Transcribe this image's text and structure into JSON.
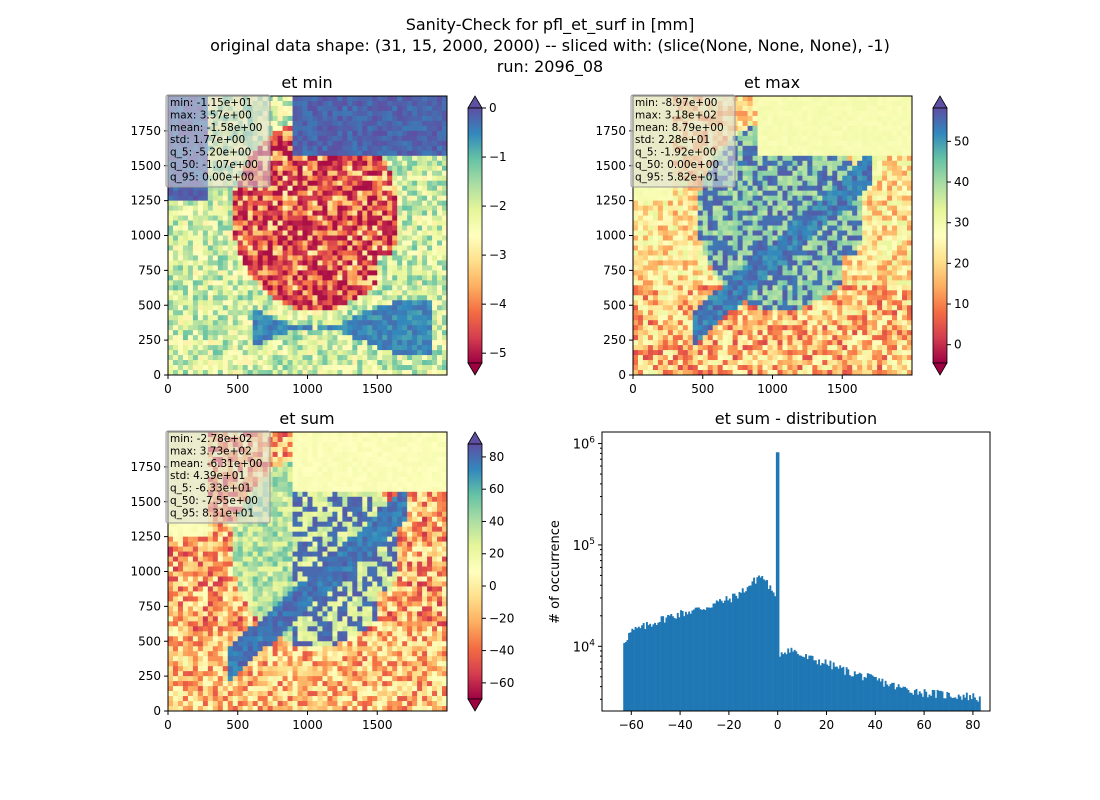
{
  "suptitle_lines": [
    "Sanity-Check for pfl_et_surf in [mm]",
    "original data shape: (31, 15, 2000, 2000) -- sliced with: (slice(None, None, None), -1)",
    "run: 2096_08"
  ],
  "colormap": "Spectral",
  "panels": [
    {
      "title": "et min",
      "x_ticks": [
        "0",
        "500",
        "1000",
        "1500"
      ],
      "y_ticks": [
        "0",
        "250",
        "500",
        "750",
        "1000",
        "1250",
        "1500",
        "1750"
      ],
      "cbar_ticks": [
        "0",
        "−1",
        "−2",
        "−3",
        "−4",
        "−5"
      ],
      "cbar_range": [
        -5.2,
        0.0
      ],
      "stats": [
        "min: -1.15e+01",
        "max: 3.57e+00",
        "mean: -1.58e+00",
        "std: 1.77e+00",
        "q_5: -5.20e+00",
        "q_50: -1.07e+00",
        "q_95: 0.00e+00"
      ]
    },
    {
      "title": "et max",
      "x_ticks": [
        "0",
        "500",
        "1000",
        "1500"
      ],
      "y_ticks": [
        "0",
        "250",
        "500",
        "750",
        "1000",
        "1250",
        "1500",
        "1750"
      ],
      "cbar_ticks": [
        "50",
        "40",
        "30",
        "20",
        "10",
        "0"
      ],
      "cbar_range": [
        -4.5,
        58.2
      ],
      "stats": [
        "min: -8.97e+00",
        "max: 3.18e+02",
        "mean: 8.79e+00",
        "std: 2.28e+01",
        "q_5: -1.92e+00",
        "q_50: 0.00e+00",
        "q_95: 5.82e+01"
      ]
    },
    {
      "title": "et sum",
      "x_ticks": [
        "0",
        "500",
        "1000",
        "1500"
      ],
      "y_ticks": [
        "0",
        "250",
        "500",
        "750",
        "1000",
        "1250",
        "1500",
        "1750"
      ],
      "cbar_ticks": [
        "80",
        "60",
        "40",
        "20",
        "0",
        "−20",
        "−40",
        "−60"
      ],
      "cbar_range": [
        -70,
        88
      ],
      "stats": [
        "min: -2.78e+02",
        "max: 3.73e+02",
        "mean: -6.31e+00",
        "std: 4.39e+01",
        "q_5: -6.33e+01",
        "q_50: -7.55e+00",
        "q_95: 8.31e+01"
      ]
    }
  ],
  "chart_data": {
    "type": "bar",
    "title": "et sum - distribution",
    "xlabel": "",
    "ylabel": "# of occurrence",
    "y_scale": "log",
    "xlim": [
      -72,
      87
    ],
    "ylim": [
      2300,
      1300000
    ],
    "x_tick_labels": [
      "−60",
      "−40",
      "−20",
      "0",
      "20",
      "40",
      "60",
      "80"
    ],
    "y_tick_labels": [
      "10^4",
      "10^5",
      "10^6"
    ],
    "bar_color": "#1f77b4",
    "bins": [
      {
        "x": -63.3,
        "count": 11000
      },
      {
        "x": -60,
        "count": 14000
      },
      {
        "x": -55,
        "count": 15500
      },
      {
        "x": -50,
        "count": 17500
      },
      {
        "x": -45,
        "count": 19500
      },
      {
        "x": -40,
        "count": 21000
      },
      {
        "x": -35,
        "count": 22500
      },
      {
        "x": -30,
        "count": 24000
      },
      {
        "x": -25,
        "count": 27000
      },
      {
        "x": -20,
        "count": 29000
      },
      {
        "x": -15,
        "count": 34000
      },
      {
        "x": -10,
        "count": 43000
      },
      {
        "x": -7.5,
        "count": 50000
      },
      {
        "x": -5,
        "count": 45000
      },
      {
        "x": -3,
        "count": 37000
      },
      {
        "x": -2,
        "count": 31000
      },
      {
        "x": -1,
        "count": 32000
      },
      {
        "x": -0.5,
        "count": 60000
      },
      {
        "x": 0,
        "count": 820000
      },
      {
        "x": 0.5,
        "count": 8500
      },
      {
        "x": 5,
        "count": 9500
      },
      {
        "x": 10,
        "count": 8000
      },
      {
        "x": 20,
        "count": 6800
      },
      {
        "x": 30,
        "count": 5500
      },
      {
        "x": 40,
        "count": 4700
      },
      {
        "x": 50,
        "count": 3900
      },
      {
        "x": 60,
        "count": 3500
      },
      {
        "x": 70,
        "count": 3300
      },
      {
        "x": 80,
        "count": 3200
      },
      {
        "x": 83.1,
        "count": 3000
      }
    ]
  }
}
